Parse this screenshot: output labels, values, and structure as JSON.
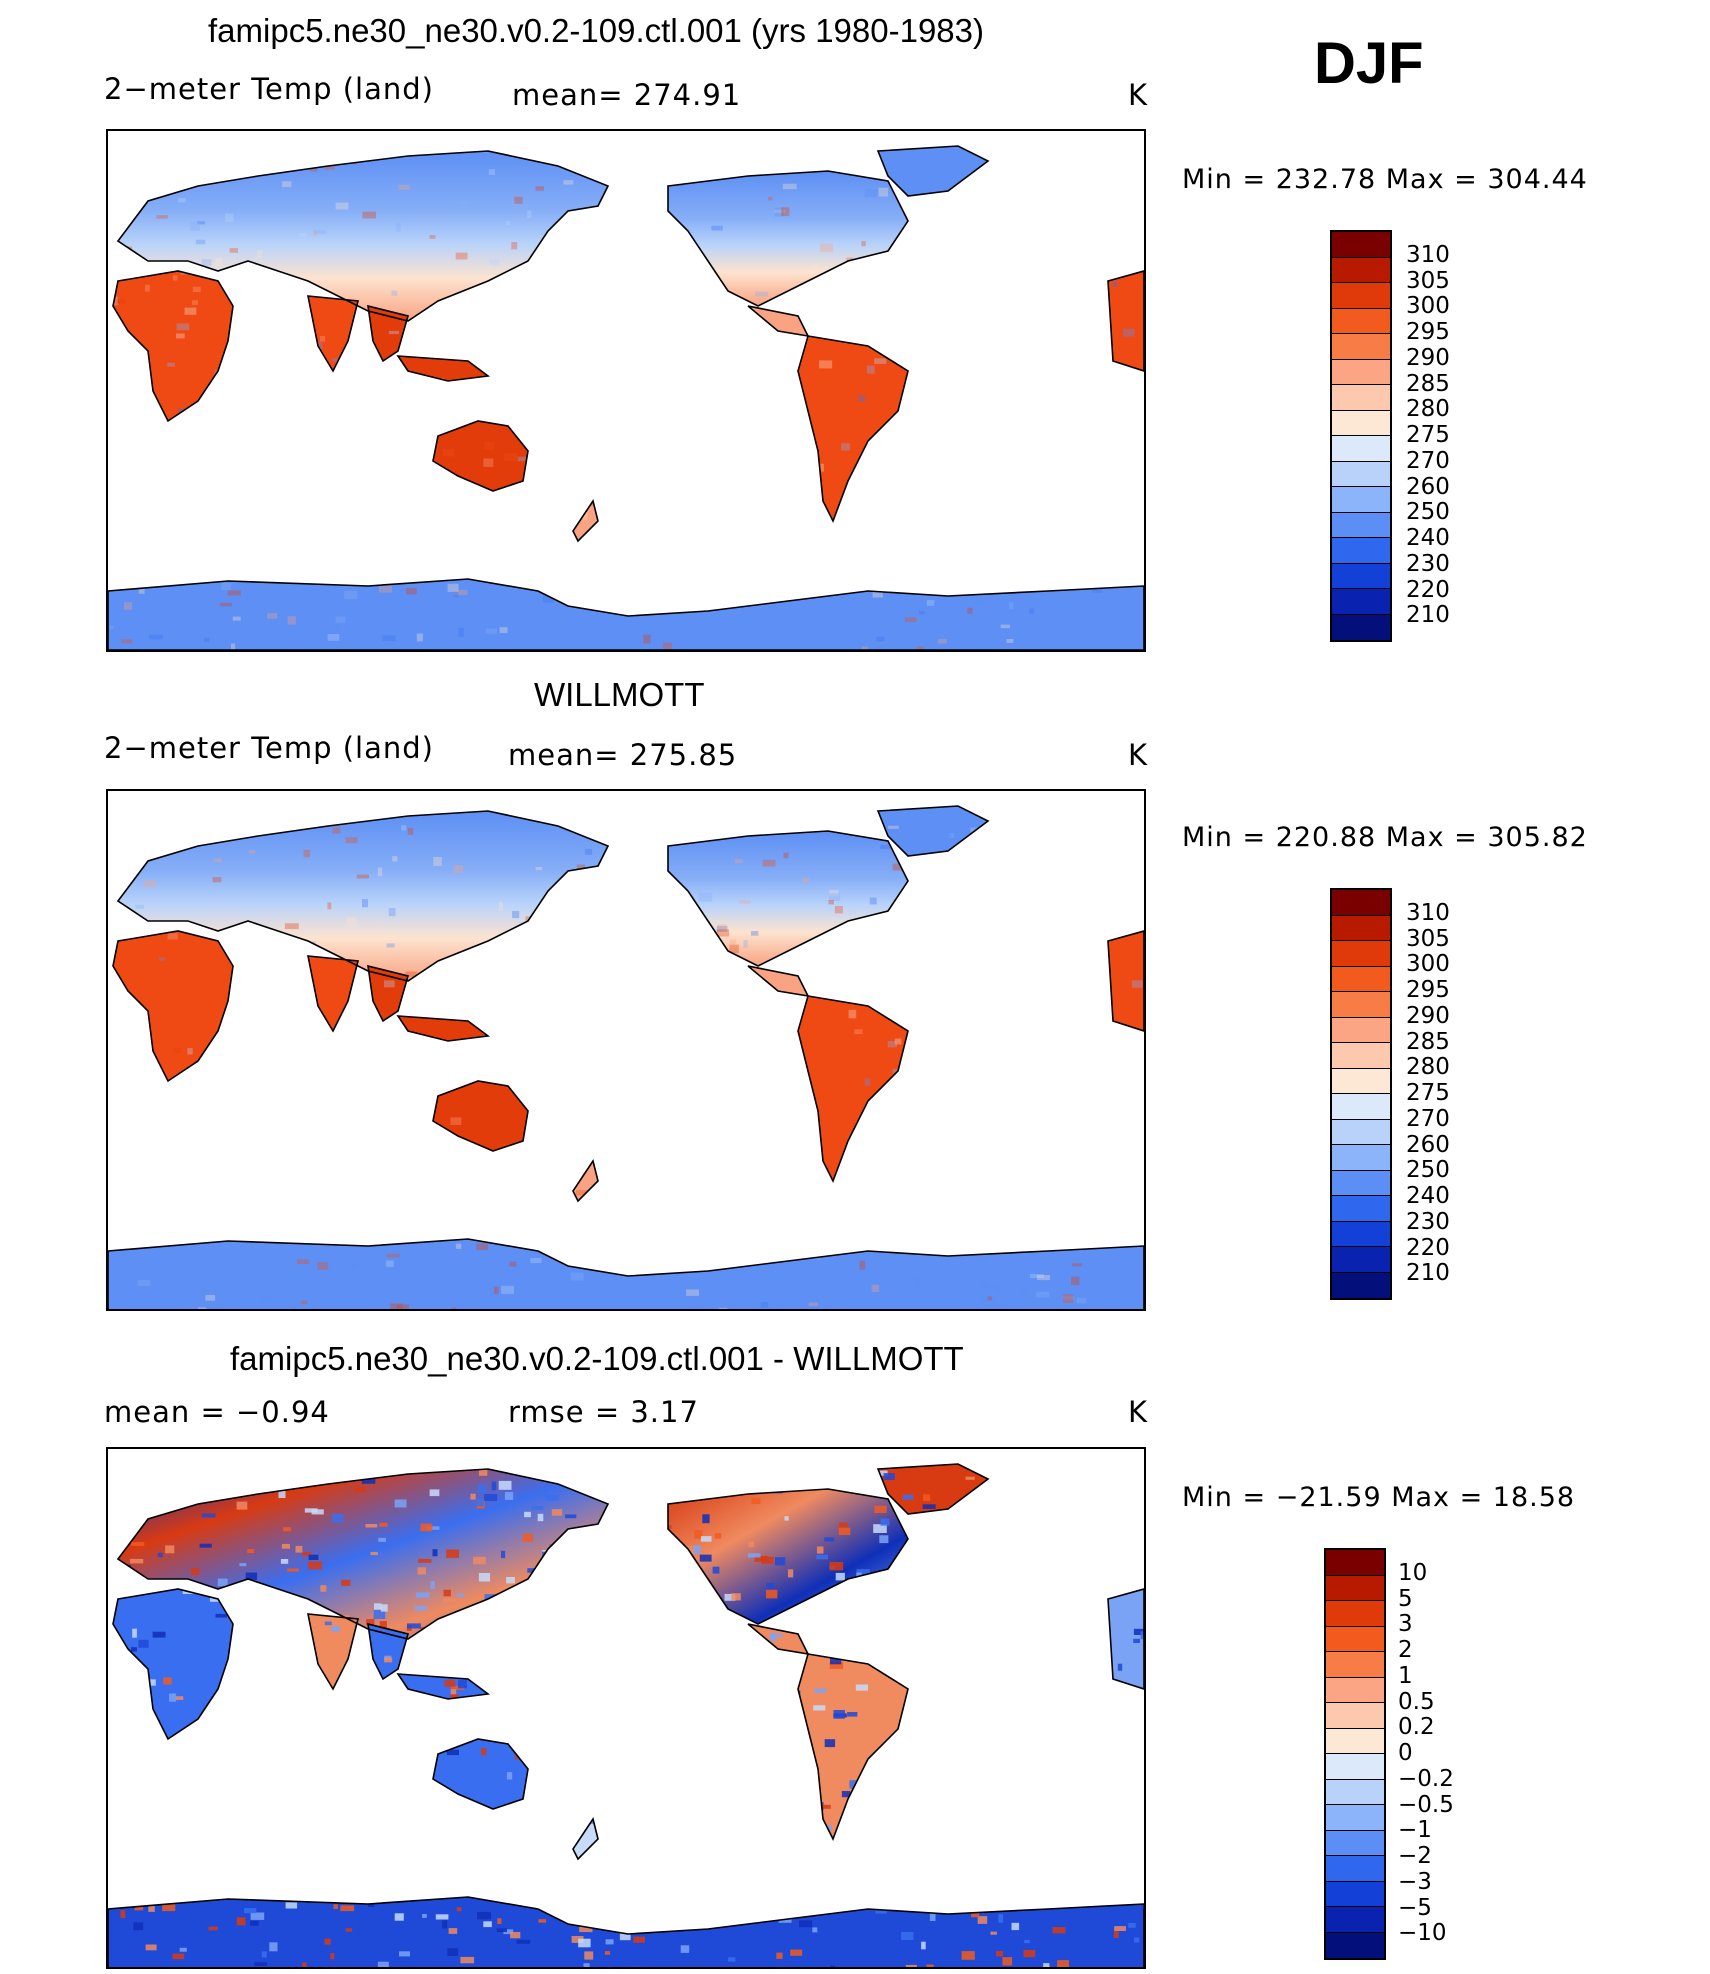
{
  "season": "DJF",
  "units": "K",
  "panels": [
    {
      "id": "model",
      "title": "famipc5.ne30_ne30.v0.2-109.ctl.001 (yrs 1980-1983)",
      "variable": "2−meter Temp (land)",
      "stat": "mean= 274.91",
      "units": "K",
      "minmax": "Min  =  232.78  Max  =  304.44",
      "colorbar": {
        "labels": [
          "310",
          "305",
          "300",
          "295",
          "290",
          "285",
          "280",
          "275",
          "270",
          "260",
          "250",
          "240",
          "230",
          "220",
          "210"
        ],
        "colors": [
          "#7a0000",
          "#b81a00",
          "#e03a0a",
          "#f25a1e",
          "#f77c45",
          "#fba585",
          "#fcc8ae",
          "#fde8d6",
          "#dbe9fa",
          "#b8d2fa",
          "#8cb4fa",
          "#5c8ff5",
          "#2f67ee",
          "#1341d8",
          "#0a22b0",
          "#030f7a"
        ]
      },
      "palette": [
        "#f04a14",
        "#e23c0a",
        "#f9a382",
        "#fde3cf",
        "#b9d3fa",
        "#86aef7",
        "#5d8ff4",
        "#3a72f0"
      ]
    },
    {
      "id": "obs",
      "title": "WILLMOTT",
      "variable": "2−meter Temp (land)",
      "stat": "mean= 275.85",
      "units": "K",
      "minmax": "Min  =  220.88  Max  =  305.82",
      "colorbar": {
        "labels": [
          "310",
          "305",
          "300",
          "295",
          "290",
          "285",
          "280",
          "275",
          "270",
          "260",
          "250",
          "240",
          "230",
          "220",
          "210"
        ],
        "colors": [
          "#7a0000",
          "#b81a00",
          "#e03a0a",
          "#f25a1e",
          "#f77c45",
          "#fba585",
          "#fcc8ae",
          "#fde8d6",
          "#dbe9fa",
          "#b8d2fa",
          "#8cb4fa",
          "#5c8ff5",
          "#2f67ee",
          "#1341d8",
          "#0a22b0",
          "#030f7a"
        ]
      },
      "palette": [
        "#f04a14",
        "#e23c0a",
        "#f9a382",
        "#fde3cf",
        "#b9d3fa",
        "#86aef7",
        "#5d8ff4",
        "#3a72f0"
      ]
    },
    {
      "id": "diff",
      "title": "famipc5.ne30_ne30.v0.2-109.ctl.001 - WILLMOTT",
      "variable": "mean =    −0.94",
      "stat": "rmse =     3.17",
      "units": "K",
      "minmax": "Min  =  −21.59  Max  =    18.58",
      "colorbar": {
        "labels": [
          "10",
          "5",
          "3",
          "2",
          "1",
          "0.5",
          "0.2",
          "0",
          "−0.2",
          "−0.5",
          "−1",
          "−2",
          "−3",
          "−5",
          "−10"
        ],
        "colors": [
          "#7a0000",
          "#b81a00",
          "#e03a0a",
          "#f25a1e",
          "#f77c45",
          "#fba585",
          "#fcc8ae",
          "#fde8d6",
          "#dbe9fa",
          "#b8d2fa",
          "#8cb4fa",
          "#5c8ff5",
          "#2f67ee",
          "#1341d8",
          "#0a22b0",
          "#030f7a"
        ]
      },
      "palette": [
        "#d83a12",
        "#f08a5f",
        "#3a6ef0",
        "#1f4ad8",
        "#7aa3f6",
        "#0f2fb8",
        "#c7dbfa",
        "#f25a1e"
      ]
    }
  ]
}
